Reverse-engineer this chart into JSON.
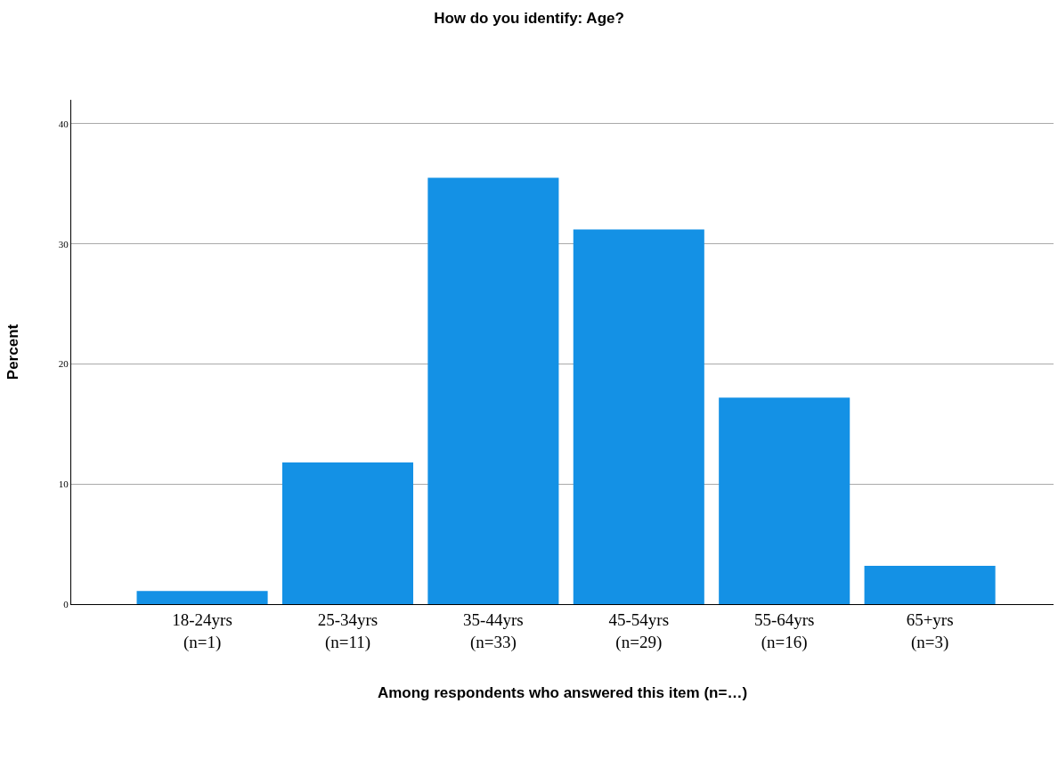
{
  "chart_data": {
    "type": "bar",
    "title": "How do you identify: Age?",
    "xlabel": "Among respondents who answered this item (n=…)",
    "ylabel": "Percent",
    "categories": [
      "18-24yrs\n(n=1)",
      "25-34yrs\n(n=11)",
      "35-44yrs\n(n=33)",
      "45-54yrs\n(n=29)",
      "55-64yrs\n(n=16)",
      "65+yrs\n(n=3)"
    ],
    "values": [
      1.1,
      11.8,
      35.5,
      31.2,
      17.2,
      3.2
    ],
    "color": "#1491e5",
    "ylim": [
      0,
      42
    ],
    "yticks": [
      0,
      10,
      20,
      30,
      40
    ],
    "grid": "y"
  }
}
